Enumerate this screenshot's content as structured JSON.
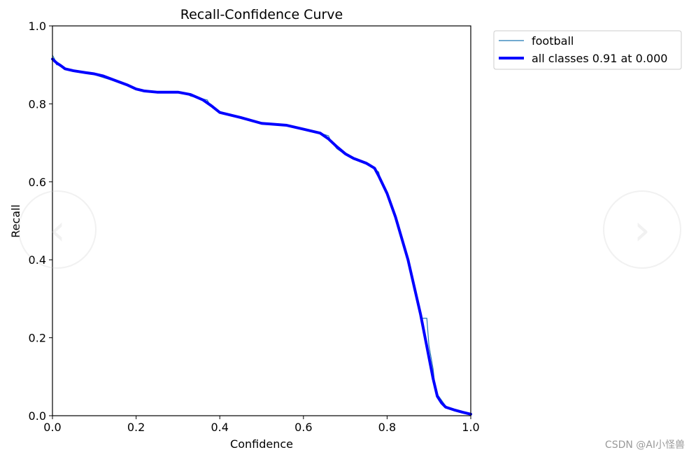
{
  "chart_data": {
    "type": "line",
    "title": "Recall-Confidence Curve",
    "xlabel": "Confidence",
    "ylabel": "Recall",
    "xlim": [
      0.0,
      1.0
    ],
    "ylim": [
      0.0,
      1.0
    ],
    "xticks": [
      "0.0",
      "0.2",
      "0.4",
      "0.6",
      "0.8",
      "1.0"
    ],
    "yticks": [
      "0.0",
      "0.2",
      "0.4",
      "0.6",
      "0.8",
      "1.0"
    ],
    "grid": false,
    "legend_position": "outside-upper-right",
    "series": [
      {
        "name": "football",
        "color": "#1f77b4",
        "style": "thin",
        "x": [
          0.0,
          0.005,
          0.01,
          0.015,
          0.02,
          0.03,
          0.05,
          0.08,
          0.1,
          0.12,
          0.15,
          0.17,
          0.18,
          0.19,
          0.2,
          0.22,
          0.25,
          0.28,
          0.3,
          0.32,
          0.33,
          0.35,
          0.37,
          0.375,
          0.4,
          0.45,
          0.5,
          0.56,
          0.6,
          0.64,
          0.66,
          0.665,
          0.68,
          0.7,
          0.72,
          0.75,
          0.77,
          0.78,
          0.785,
          0.8,
          0.82,
          0.85,
          0.88,
          0.895,
          0.9,
          0.91,
          0.915,
          0.92,
          0.93,
          0.94,
          0.95,
          0.97,
          1.0
        ],
        "y": [
          0.925,
          0.915,
          0.9,
          0.9,
          0.9,
          0.89,
          0.883,
          0.878,
          0.875,
          0.868,
          0.858,
          0.85,
          0.85,
          0.845,
          0.84,
          0.835,
          0.83,
          0.83,
          0.83,
          0.827,
          0.82,
          0.815,
          0.81,
          0.8,
          0.778,
          0.765,
          0.75,
          0.745,
          0.735,
          0.725,
          0.718,
          0.705,
          0.685,
          0.67,
          0.658,
          0.645,
          0.633,
          0.625,
          0.6,
          0.575,
          0.51,
          0.4,
          0.25,
          0.25,
          0.18,
          0.12,
          0.07,
          0.055,
          0.04,
          0.025,
          0.018,
          0.012,
          0.005
        ]
      },
      {
        "name": "all classes 0.91 at 0.000",
        "color": "#0000ff",
        "style": "thick",
        "x": [
          0.0,
          0.01,
          0.02,
          0.03,
          0.05,
          0.08,
          0.1,
          0.12,
          0.15,
          0.18,
          0.2,
          0.22,
          0.25,
          0.28,
          0.3,
          0.33,
          0.36,
          0.38,
          0.4,
          0.45,
          0.5,
          0.56,
          0.6,
          0.64,
          0.66,
          0.68,
          0.7,
          0.72,
          0.75,
          0.77,
          0.78,
          0.8,
          0.82,
          0.85,
          0.88,
          0.9,
          0.91,
          0.92,
          0.93,
          0.94,
          0.96,
          0.98,
          1.0
        ],
        "y": [
          0.915,
          0.905,
          0.898,
          0.89,
          0.885,
          0.88,
          0.877,
          0.872,
          0.86,
          0.848,
          0.838,
          0.833,
          0.83,
          0.83,
          0.83,
          0.824,
          0.81,
          0.795,
          0.778,
          0.765,
          0.75,
          0.745,
          0.735,
          0.725,
          0.71,
          0.69,
          0.672,
          0.66,
          0.648,
          0.635,
          0.615,
          0.57,
          0.51,
          0.4,
          0.26,
          0.15,
          0.095,
          0.05,
          0.033,
          0.022,
          0.015,
          0.009,
          0.004
        ]
      }
    ]
  },
  "watermark": "CSDN @AI小怪兽"
}
